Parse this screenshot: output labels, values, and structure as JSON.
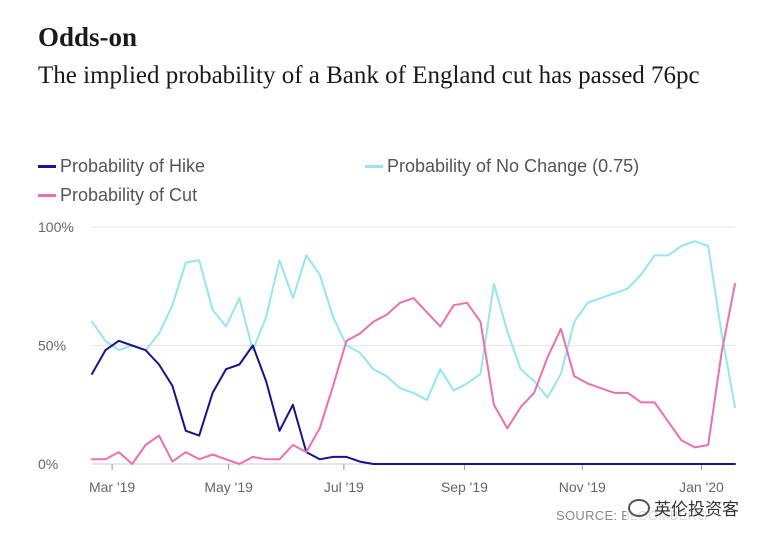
{
  "header": {
    "title": "Odds-on",
    "subtitle": "The implied probability of a Bank of England cut has passed 76pc"
  },
  "legend": [
    {
      "label": "Probability of Hike",
      "color": "#1a1296"
    },
    {
      "label": "Probability of No Change (0.75)",
      "color": "#94e6f5"
    },
    {
      "label": "Probability of Cut",
      "color": "#ee6fb0"
    }
  ],
  "source": "SOURCE: BLOOMBERG",
  "watermark": "英伦投资客",
  "chart_data": {
    "type": "line",
    "title": "The implied probability of a Bank of England cut has passed 76pc",
    "xlabel": "",
    "ylabel": "",
    "xlim": [
      0,
      48
    ],
    "ylim": [
      0,
      100
    ],
    "x_unit": "weeks since 18 Feb 2019",
    "y_ticks": [
      0,
      50,
      100
    ],
    "y_tick_labels": [
      "0%",
      "50%",
      "100%"
    ],
    "x_ticks": [
      1.5,
      10.2,
      18.8,
      27.8,
      36.6,
      45.5
    ],
    "x_tick_labels": [
      "Mar '19",
      "May '19",
      "Jul '19",
      "Sep '19",
      "Nov '19",
      "Jan '20"
    ],
    "x": [
      0,
      1,
      2,
      3,
      4,
      5,
      6,
      7,
      8,
      9,
      10,
      11,
      12,
      13,
      14,
      15,
      16,
      17,
      18,
      19,
      20,
      21,
      22,
      23,
      24,
      25,
      26,
      27,
      28,
      29,
      30,
      31,
      32,
      33,
      34,
      35,
      36,
      37,
      38,
      39,
      40,
      41,
      42,
      43,
      44,
      45,
      46,
      47,
      48
    ],
    "series": [
      {
        "name": "Probability of Hike",
        "color": "#1a1296",
        "values": [
          38,
          48,
          52,
          50,
          48,
          42,
          33,
          14,
          12,
          30,
          40,
          42,
          50,
          35,
          14,
          25,
          5,
          2,
          3,
          3,
          1,
          0,
          0,
          0,
          0,
          0,
          0,
          0,
          0,
          0,
          0,
          0,
          0,
          0,
          0,
          0,
          0,
          0,
          0,
          0,
          0,
          0,
          0,
          0,
          0,
          0,
          0,
          0,
          0
        ]
      },
      {
        "name": "Probability of No Change (0.75)",
        "color": "#94e6f5",
        "values": [
          60,
          52,
          48,
          50,
          48,
          55,
          67,
          85,
          86,
          65,
          58,
          70,
          48,
          62,
          86,
          70,
          88,
          80,
          62,
          50,
          47,
          40,
          37,
          32,
          30,
          27,
          40,
          31,
          34,
          38,
          76,
          56,
          40,
          35,
          28,
          38,
          60,
          68,
          70,
          72,
          74,
          80,
          88,
          88,
          92,
          94,
          92,
          55,
          24
        ]
      },
      {
        "name": "Probability of Cut",
        "color": "#ee6fb0",
        "values": [
          2,
          2,
          5,
          0,
          8,
          12,
          1,
          5,
          2,
          4,
          2,
          0,
          3,
          2,
          2,
          8,
          5,
          15,
          33,
          52,
          55,
          60,
          63,
          68,
          70,
          64,
          58,
          67,
          68,
          60,
          25,
          15,
          24,
          30,
          45,
          57,
          37,
          34,
          32,
          30,
          30,
          26,
          26,
          18,
          10,
          7,
          8,
          47,
          76
        ]
      }
    ]
  }
}
